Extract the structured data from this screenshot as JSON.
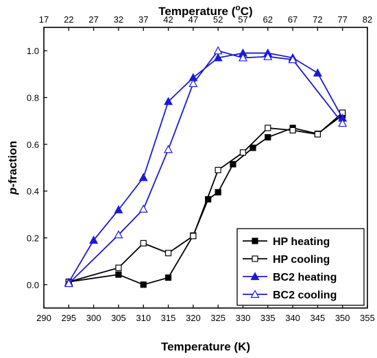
{
  "chart_data": {
    "type": "line",
    "xlabel": "Temperature (K)",
    "x2label": {
      "pre": "Temperature (",
      "sup": "o",
      "post": "C)"
    },
    "ylabel": {
      "italic": "p",
      "rest": "-fraction"
    },
    "xlim": [
      290,
      355
    ],
    "ylim": [
      -0.1,
      1.1
    ],
    "x_ticks": [
      290,
      295,
      300,
      305,
      310,
      315,
      320,
      325,
      330,
      335,
      340,
      345,
      350,
      355
    ],
    "x2_ticks": [
      17,
      22,
      27,
      32,
      37,
      42,
      47,
      52,
      57,
      62,
      67,
      72,
      77,
      82
    ],
    "y_ticks": [
      "0.0",
      "0.2",
      "0.4",
      "0.6",
      "0.8",
      "1.0"
    ],
    "legend_position": "bottom-right",
    "series": [
      {
        "name": "HP heating",
        "color": "#000000",
        "marker": "square",
        "filled": true,
        "x": [
          295,
          305,
          310,
          315,
          320,
          323,
          325,
          328,
          332,
          335,
          340,
          345,
          350
        ],
        "y": [
          0.012,
          0.043,
          0.0,
          0.03,
          0.21,
          0.365,
          0.395,
          0.515,
          0.585,
          0.63,
          0.67,
          0.645,
          0.725
        ]
      },
      {
        "name": "HP cooling",
        "color": "#000000",
        "marker": "square",
        "filled": false,
        "x": [
          295,
          305,
          310,
          315,
          320,
          325,
          330,
          335,
          340,
          345,
          350
        ],
        "y": [
          0.012,
          0.072,
          0.177,
          0.135,
          0.208,
          0.49,
          0.565,
          0.67,
          0.66,
          0.643,
          0.735
        ]
      },
      {
        "name": "BC2 heating",
        "color": "#1a1ad6",
        "marker": "triangle",
        "filled": true,
        "x": [
          295,
          300,
          305,
          310,
          315,
          320,
          325,
          330,
          335,
          340,
          345,
          350
        ],
        "y": [
          0.01,
          0.19,
          0.32,
          0.458,
          0.783,
          0.885,
          0.97,
          0.99,
          0.99,
          0.97,
          0.905,
          0.712
        ]
      },
      {
        "name": "BC2 cooling",
        "color": "#1a1ad6",
        "marker": "triangle",
        "filled": false,
        "x": [
          295,
          305,
          310,
          315,
          320,
          325,
          330,
          335,
          340,
          350
        ],
        "y": [
          0.005,
          0.213,
          0.323,
          0.578,
          0.86,
          1.0,
          0.97,
          0.975,
          0.962,
          0.69
        ]
      }
    ]
  }
}
